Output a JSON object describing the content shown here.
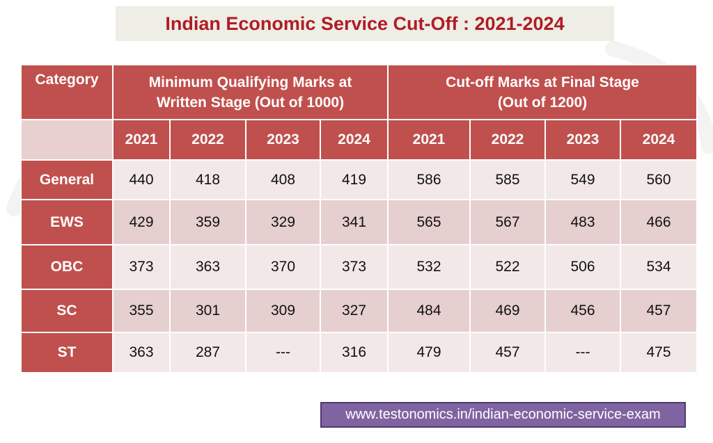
{
  "title": "Indian Economic Service Cut-Off : 2021-2024",
  "table": {
    "category_header": "Category",
    "group1_header": [
      "Minimum Qualifying Marks at",
      "Written Stage (Out of 1000)"
    ],
    "group2_header": [
      "Cut-off Marks at Final Stage",
      "(Out of 1200)"
    ],
    "years": [
      "2021",
      "2022",
      "2023",
      "2024",
      "2021",
      "2022",
      "2023",
      "2024"
    ],
    "rows": [
      {
        "category": "General",
        "values": [
          "440",
          "418",
          "408",
          "419",
          "586",
          "585",
          "549",
          "560"
        ]
      },
      {
        "category": "EWS",
        "values": [
          "429",
          "359",
          "329",
          "341",
          "565",
          "567",
          "483",
          "466"
        ]
      },
      {
        "category": "OBC",
        "values": [
          "373",
          "363",
          "370",
          "373",
          "532",
          "522",
          "506",
          "534"
        ]
      },
      {
        "category": "SC",
        "values": [
          "355",
          "301",
          "309",
          "327",
          "484",
          "469",
          "456",
          "457"
        ]
      },
      {
        "category": "ST",
        "values": [
          "363",
          "287",
          "---",
          "316",
          "479",
          "457",
          "---",
          "475"
        ]
      }
    ]
  },
  "footer_link": "www.testonomics.in/indian-economic-service-exam",
  "colors": {
    "header_red": "#c0504d",
    "title_red": "#b01c24",
    "row_light": "#f2e8e8",
    "row_dark": "#e6cfcf",
    "link_purple": "#8064a2"
  }
}
